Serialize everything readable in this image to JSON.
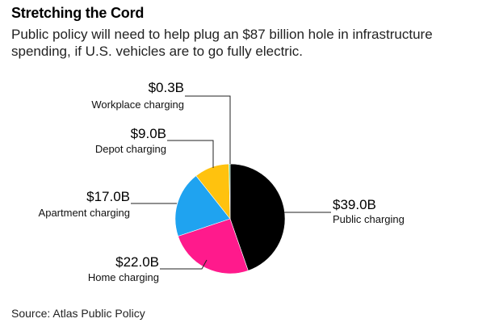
{
  "title": "Stretching the Cord",
  "subtitle": "Public policy will need to help plug an $87 billion hole in infrastructure spending, if U.S. vehicles are to go fully electric.",
  "source": "Source: Atlas Public Policy",
  "chart_data": {
    "type": "pie",
    "title": "Stretching the Cord",
    "unit": "billion USD",
    "slices": [
      {
        "label": "Public charging",
        "value": 39.0,
        "value_label": "$39.0B",
        "color": "#000000"
      },
      {
        "label": "Home charging",
        "value": 22.0,
        "value_label": "$22.0B",
        "color": "#ff1a8c"
      },
      {
        "label": "Apartment charging",
        "value": 17.0,
        "value_label": "$17.0B",
        "color": "#1fa3f0"
      },
      {
        "label": "Depot charging",
        "value": 9.0,
        "value_label": "$9.0B",
        "color": "#ffc20e"
      },
      {
        "label": "Workplace charging",
        "value": 0.3,
        "value_label": "$0.3B",
        "color": "#2ec27e"
      }
    ]
  }
}
